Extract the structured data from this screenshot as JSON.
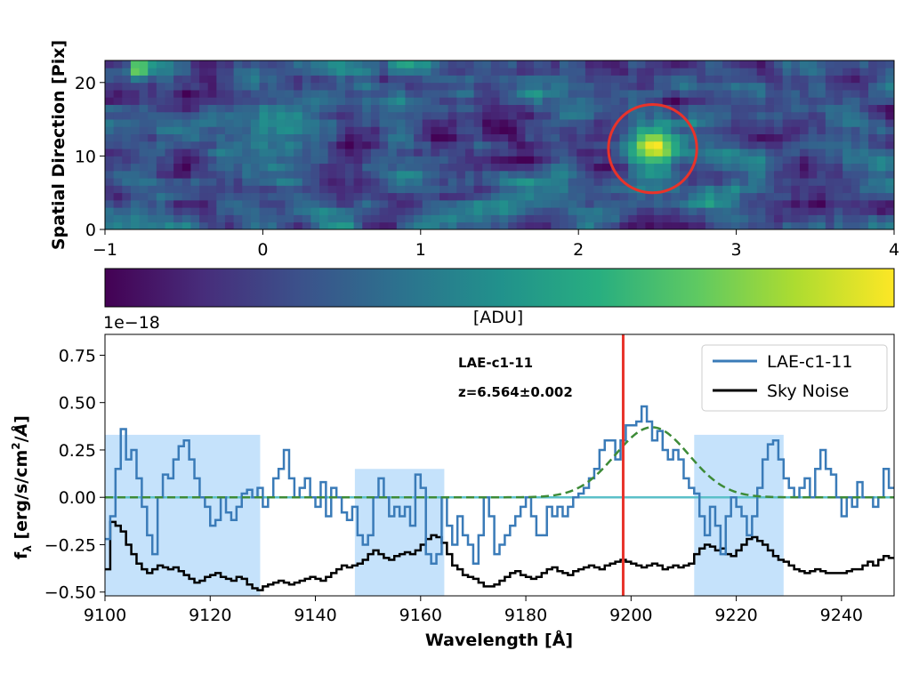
{
  "chart_data": [
    {
      "type": "heatmap",
      "ylabel": "Spatial Direction [Pix]",
      "xlim": [
        -1,
        4
      ],
      "ylim": [
        0,
        23
      ],
      "x_ticks": [
        "−1",
        "0",
        "1",
        "2",
        "3",
        "4"
      ],
      "y_ticks": [
        "0",
        "10",
        "20"
      ],
      "colorbar_label": "[ADU]",
      "colormap": "viridis",
      "highlight_circle": {
        "x": 2.47,
        "y": 11,
        "radius": 0.28
      }
    },
    {
      "type": "line",
      "xlabel": "Wavelength [Å]",
      "ylabel": "fλ  [erg/s/cm²/Å]",
      "offset_label": "1e−18",
      "xlim": [
        9100,
        9250
      ],
      "ylim": [
        -0.52,
        0.86
      ],
      "x_ticks": [
        "9100",
        "9120",
        "9140",
        "9160",
        "9180",
        "9200",
        "9220",
        "9240"
      ],
      "y_ticks": [
        "−0.50",
        "−0.25",
        "0.00",
        "0.25",
        "0.50",
        "0.75"
      ],
      "annotation": {
        "name": "LAE-c1-11",
        "redshift": "z=6.564±0.002"
      },
      "legend": {
        "position": "top-right",
        "entries": [
          "LAE-c1-11",
          "Sky Noise"
        ]
      },
      "vertical_line": 9198.5,
      "shaded_regions": [
        [
          9100,
          9129.5,
          0.33
        ],
        [
          9147.5,
          9164.5,
          0.15
        ],
        [
          9212,
          9229,
          0.33
        ]
      ],
      "series": [
        {
          "name": "LAE-c1-11",
          "color": "#3a7bb8",
          "step": true,
          "x": [
            9100,
            9101,
            9102,
            9103,
            9104,
            9105,
            9106,
            9107,
            9108,
            9109,
            9110,
            9111,
            9112,
            9113,
            9114,
            9115,
            9116,
            9117,
            9118,
            9119,
            9120,
            9121,
            9122,
            9123,
            9124,
            9125,
            9126,
            9127,
            9128,
            9129,
            9130,
            9131,
            9132,
            9133,
            9134,
            9135,
            9136,
            9137,
            9138,
            9139,
            9140,
            9141,
            9142,
            9143,
            9144,
            9145,
            9146,
            9147,
            9148,
            9149,
            9150,
            9151,
            9152,
            9153,
            9154,
            9155,
            9156,
            9157,
            9158,
            9159,
            9160,
            9161,
            9162,
            9163,
            9164,
            9165,
            9166,
            9167,
            9168,
            9169,
            9170,
            9171,
            9172,
            9173,
            9174,
            9175,
            9176,
            9177,
            9178,
            9179,
            9180,
            9181,
            9182,
            9183,
            9184,
            9185,
            9186,
            9187,
            9188,
            9189,
            9190,
            9191,
            9192,
            9193,
            9194,
            9195,
            9196,
            9197,
            9198,
            9199,
            9200,
            9201,
            9202,
            9203,
            9204,
            9205,
            9206,
            9207,
            9208,
            9209,
            9210,
            9211,
            9212,
            9213,
            9214,
            9215,
            9216,
            9217,
            9218,
            9219,
            9220,
            9221,
            9222,
            9223,
            9224,
            9225,
            9226,
            9227,
            9228,
            9229,
            9230,
            9231,
            9232,
            9233,
            9234,
            9235,
            9236,
            9237,
            9238,
            9239,
            9240,
            9241,
            9242,
            9243,
            9244,
            9245,
            9246,
            9247,
            9248,
            9249
          ],
          "values": [
            -0.22,
            -0.1,
            0.15,
            0.36,
            0.2,
            0.25,
            0.1,
            -0.05,
            -0.2,
            -0.3,
            0.0,
            0.12,
            0.1,
            0.2,
            0.27,
            0.3,
            0.2,
            0.1,
            0.0,
            -0.05,
            -0.15,
            -0.12,
            0.0,
            -0.08,
            -0.12,
            -0.05,
            0.02,
            0.04,
            0.0,
            0.05,
            -0.05,
            0.0,
            0.1,
            0.15,
            0.25,
            0.1,
            0.0,
            0.05,
            0.1,
            0.0,
            -0.05,
            0.08,
            -0.1,
            0.05,
            0.0,
            -0.08,
            -0.12,
            -0.05,
            -0.2,
            -0.25,
            -0.2,
            0.0,
            0.1,
            0.0,
            -0.1,
            -0.05,
            -0.1,
            -0.05,
            -0.15,
            0.12,
            0.05,
            -0.3,
            -0.35,
            -0.3,
            0.0,
            -0.15,
            -0.25,
            -0.1,
            -0.2,
            -0.25,
            -0.35,
            -0.2,
            0.0,
            -0.1,
            -0.3,
            -0.25,
            -0.2,
            -0.15,
            -0.1,
            -0.05,
            0.0,
            -0.1,
            -0.2,
            -0.2,
            -0.05,
            -0.1,
            -0.05,
            -0.1,
            -0.05,
            0.0,
            0.02,
            0.05,
            0.1,
            0.15,
            0.25,
            0.3,
            0.3,
            0.2,
            0.3,
            0.38,
            0.38,
            0.4,
            0.48,
            0.4,
            0.3,
            0.35,
            0.25,
            0.2,
            0.25,
            0.2,
            0.1,
            0.05,
            0.02,
            -0.1,
            -0.2,
            -0.05,
            -0.15,
            -0.3,
            -0.1,
            0.0,
            -0.05,
            -0.1,
            -0.2,
            -0.1,
            0.05,
            0.2,
            0.28,
            0.3,
            0.2,
            0.1,
            0.05,
            0.0,
            0.05,
            0.1,
            0.0,
            0.15,
            0.25,
            0.15,
            0.12,
            0.0,
            -0.1,
            0.0,
            -0.05,
            0.08,
            0.0,
            0.0,
            -0.05,
            0.0,
            0.15,
            0.05
          ]
        },
        {
          "name": "Sky Noise",
          "color": "#000000",
          "step": true,
          "x": [
            9100,
            9101,
            9102,
            9103,
            9104,
            9105,
            9106,
            9107,
            9108,
            9109,
            9110,
            9111,
            9112,
            9113,
            9114,
            9115,
            9116,
            9117,
            9118,
            9119,
            9120,
            9121,
            9122,
            9123,
            9124,
            9125,
            9126,
            9127,
            9128,
            9129,
            9130,
            9131,
            9132,
            9133,
            9134,
            9135,
            9136,
            9137,
            9138,
            9139,
            9140,
            9141,
            9142,
            9143,
            9144,
            9145,
            9146,
            9147,
            9148,
            9149,
            9150,
            9151,
            9152,
            9153,
            9154,
            9155,
            9156,
            9157,
            9158,
            9159,
            9160,
            9161,
            9162,
            9163,
            9164,
            9165,
            9166,
            9167,
            9168,
            9169,
            9170,
            9171,
            9172,
            9173,
            9174,
            9175,
            9176,
            9177,
            9178,
            9179,
            9180,
            9181,
            9182,
            9183,
            9184,
            9185,
            9186,
            9187,
            9188,
            9189,
            9190,
            9191,
            9192,
            9193,
            9194,
            9195,
            9196,
            9197,
            9198,
            9199,
            9200,
            9201,
            9202,
            9203,
            9204,
            9205,
            9206,
            9207,
            9208,
            9209,
            9210,
            9211,
            9212,
            9213,
            9214,
            9215,
            9216,
            9217,
            9218,
            9219,
            9220,
            9221,
            9222,
            9223,
            9224,
            9225,
            9226,
            9227,
            9228,
            9229,
            9230,
            9231,
            9232,
            9233,
            9234,
            9235,
            9236,
            9237,
            9238,
            9239,
            9240,
            9241,
            9242,
            9243,
            9244,
            9245,
            9246,
            9247,
            9248,
            9249
          ],
          "values": [
            -0.38,
            -0.13,
            -0.15,
            -0.18,
            -0.25,
            -0.3,
            -0.35,
            -0.38,
            -0.4,
            -0.38,
            -0.36,
            -0.37,
            -0.38,
            -0.37,
            -0.39,
            -0.41,
            -0.43,
            -0.45,
            -0.44,
            -0.42,
            -0.41,
            -0.4,
            -0.42,
            -0.43,
            -0.44,
            -0.42,
            -0.43,
            -0.46,
            -0.48,
            -0.49,
            -0.47,
            -0.46,
            -0.45,
            -0.44,
            -0.45,
            -0.46,
            -0.45,
            -0.44,
            -0.43,
            -0.42,
            -0.43,
            -0.44,
            -0.42,
            -0.4,
            -0.38,
            -0.36,
            -0.37,
            -0.36,
            -0.35,
            -0.33,
            -0.3,
            -0.28,
            -0.3,
            -0.32,
            -0.33,
            -0.31,
            -0.3,
            -0.29,
            -0.3,
            -0.28,
            -0.25,
            -0.22,
            -0.2,
            -0.21,
            -0.24,
            -0.3,
            -0.36,
            -0.38,
            -0.41,
            -0.42,
            -0.43,
            -0.45,
            -0.47,
            -0.47,
            -0.46,
            -0.44,
            -0.42,
            -0.4,
            -0.39,
            -0.41,
            -0.42,
            -0.43,
            -0.42,
            -0.4,
            -0.38,
            -0.37,
            -0.39,
            -0.4,
            -0.41,
            -0.39,
            -0.38,
            -0.37,
            -0.36,
            -0.37,
            -0.38,
            -0.36,
            -0.35,
            -0.34,
            -0.33,
            -0.34,
            -0.35,
            -0.36,
            -0.37,
            -0.36,
            -0.35,
            -0.36,
            -0.38,
            -0.37,
            -0.36,
            -0.37,
            -0.36,
            -0.35,
            -0.3,
            -0.27,
            -0.25,
            -0.26,
            -0.28,
            -0.27,
            -0.3,
            -0.31,
            -0.28,
            -0.25,
            -0.22,
            -0.21,
            -0.23,
            -0.25,
            -0.28,
            -0.31,
            -0.33,
            -0.34,
            -0.36,
            -0.38,
            -0.39,
            -0.4,
            -0.39,
            -0.38,
            -0.39,
            -0.4,
            -0.4,
            -0.4,
            -0.4,
            -0.39,
            -0.38,
            -0.38,
            -0.36,
            -0.34,
            -0.36,
            -0.33,
            -0.31,
            -0.32
          ]
        },
        {
          "name": "",
          "color": "#3d8b37",
          "dashed": true,
          "model": "gaussian",
          "amplitude": 0.37,
          "center": 9204,
          "sigma": 7
        },
        {
          "name": "",
          "color": "#5bc0c8",
          "constant": 0.0
        }
      ]
    }
  ]
}
